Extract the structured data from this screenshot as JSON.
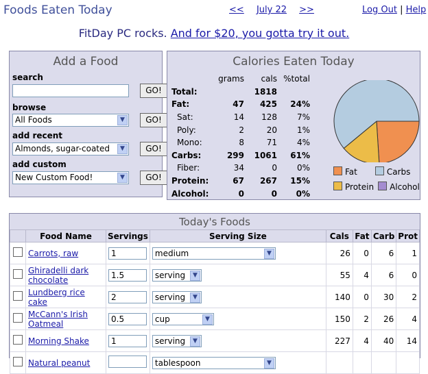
{
  "header": {
    "title": "Foods Eaten Today",
    "prev": "<<",
    "date": "July 22",
    "next": ">>",
    "logout": "Log Out",
    "sep": "|",
    "help": "Help"
  },
  "promo": {
    "text": "FitDay PC rocks.",
    "link": "And for $20, you gotta try it out."
  },
  "add_food": {
    "title": "Add a Food",
    "search_label": "search",
    "search_value": "",
    "go": "GO!",
    "browse_label": "browse",
    "browse_value": "All Foods",
    "recent_label": "add recent",
    "recent_value": "Almonds, sugar-coated",
    "custom_label": "add custom",
    "custom_value": "New Custom Food!"
  },
  "calories": {
    "title": "Calories Eaten Today",
    "headers": [
      "grams",
      "cals",
      "%total"
    ],
    "rows": [
      {
        "label": "Total:",
        "grams": "",
        "cals": "1818",
        "pct": ""
      },
      {
        "label": "Fat:",
        "grams": "47",
        "cals": "425",
        "pct": "24%"
      },
      {
        "label": "Sat:",
        "grams": "14",
        "cals": "128",
        "pct": "7%"
      },
      {
        "label": "Poly:",
        "grams": "2",
        "cals": "20",
        "pct": "1%"
      },
      {
        "label": "Mono:",
        "grams": "8",
        "cals": "71",
        "pct": "4%"
      },
      {
        "label": "Carbs:",
        "grams": "299",
        "cals": "1061",
        "pct": "61%"
      },
      {
        "label": "Fiber:",
        "grams": "34",
        "cals": "0",
        "pct": "0%"
      },
      {
        "label": "Protein:",
        "grams": "67",
        "cals": "267",
        "pct": "15%"
      },
      {
        "label": "Alcohol:",
        "grams": "0",
        "cals": "0",
        "pct": "0%"
      }
    ],
    "legend": {
      "fat": "Fat",
      "carbs": "Carbs",
      "protein": "Protein",
      "alcohol": "Alcohol"
    },
    "pie_pct": {
      "fat": 24,
      "carbs": 61,
      "protein": 15,
      "alcohol": 0
    },
    "colors": {
      "fat": "#f09050",
      "carbs": "#b4cce0",
      "protein": "#ecbc48",
      "alcohol": "#a48cd0"
    }
  },
  "todays_foods": {
    "title": "Today's Foods",
    "columns": [
      "Food Name",
      "Servings",
      "Serving Size",
      "Cals",
      "Fat",
      "Carb",
      "Prot"
    ],
    "rows": [
      {
        "name": "Carrots, raw",
        "servings": "1",
        "size": "medium",
        "cals": "26",
        "fat": "0",
        "carb": "6",
        "prot": "1"
      },
      {
        "name": "Ghiradelli dark chocolate",
        "servings": "1.5",
        "size": "serving",
        "cals": "55",
        "fat": "4",
        "carb": "6",
        "prot": "0"
      },
      {
        "name": "Lundberg rice cake",
        "servings": "2",
        "size": "serving",
        "cals": "140",
        "fat": "0",
        "carb": "30",
        "prot": "2"
      },
      {
        "name": "McCann's Irish Oatmeal",
        "servings": "0.5",
        "size": "cup",
        "cals": "150",
        "fat": "2",
        "carb": "26",
        "prot": "4"
      },
      {
        "name": "Morning Shake",
        "servings": "1",
        "size": "serving",
        "cals": "227",
        "fat": "4",
        "carb": "40",
        "prot": "14"
      },
      {
        "name": "Natural peanut",
        "servings": "",
        "size": "tablespoon",
        "cals": "",
        "fat": "",
        "carb": "",
        "prot": ""
      }
    ]
  }
}
